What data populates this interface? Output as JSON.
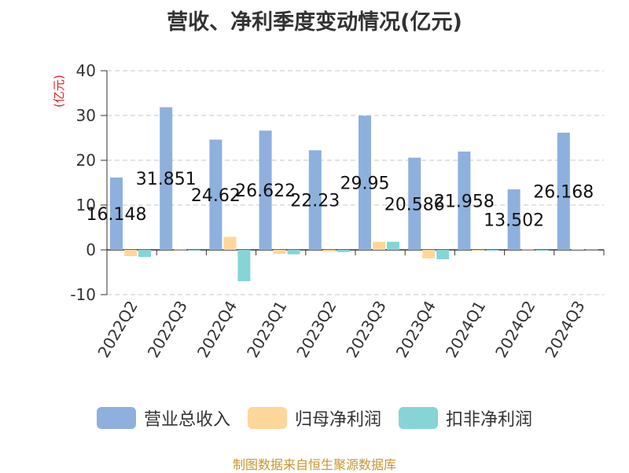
{
  "title": "营收、净利季度变动情况(亿元)",
  "footer": "制图数据来自恒生聚源数据库",
  "chart_data": {
    "type": "bar",
    "title": "营收、净利季度变动情况(亿元)",
    "ylabel": "(亿元)",
    "xlabel": "",
    "ylim": [
      -10,
      40
    ],
    "yticks": [
      -10,
      0,
      10,
      20,
      30,
      40
    ],
    "grid": true,
    "legend_position": "bottom",
    "categories": [
      "2022Q2",
      "2022Q3",
      "2022Q4",
      "2023Q1",
      "2023Q2",
      "2023Q3",
      "2023Q4",
      "2024Q1",
      "2024Q2",
      "2024Q3"
    ],
    "series": [
      {
        "name": "营业总收入",
        "color": "#8eb0dd",
        "values": [
          16.148,
          31.851,
          24.62,
          26.622,
          22.23,
          29.95,
          20.586,
          21.958,
          13.502,
          26.168
        ],
        "labels": [
          "16.148",
          "31.851",
          "24.62",
          "26.622",
          "22.23",
          "29.95",
          "20.586",
          "21.958",
          "13.502",
          "26.168"
        ]
      },
      {
        "name": "归母净利润",
        "color": "#fdd79a",
        "values": [
          -1.4,
          0.1,
          2.9,
          -0.9,
          -0.4,
          1.8,
          -1.9,
          -0.1,
          0.1,
          0.2
        ]
      },
      {
        "name": "扣非净利润",
        "color": "#86d4d6",
        "values": [
          -1.6,
          0.0,
          -7.0,
          -1.0,
          -0.5,
          1.8,
          -2.1,
          -0.2,
          0.0,
          0.1
        ]
      }
    ]
  }
}
